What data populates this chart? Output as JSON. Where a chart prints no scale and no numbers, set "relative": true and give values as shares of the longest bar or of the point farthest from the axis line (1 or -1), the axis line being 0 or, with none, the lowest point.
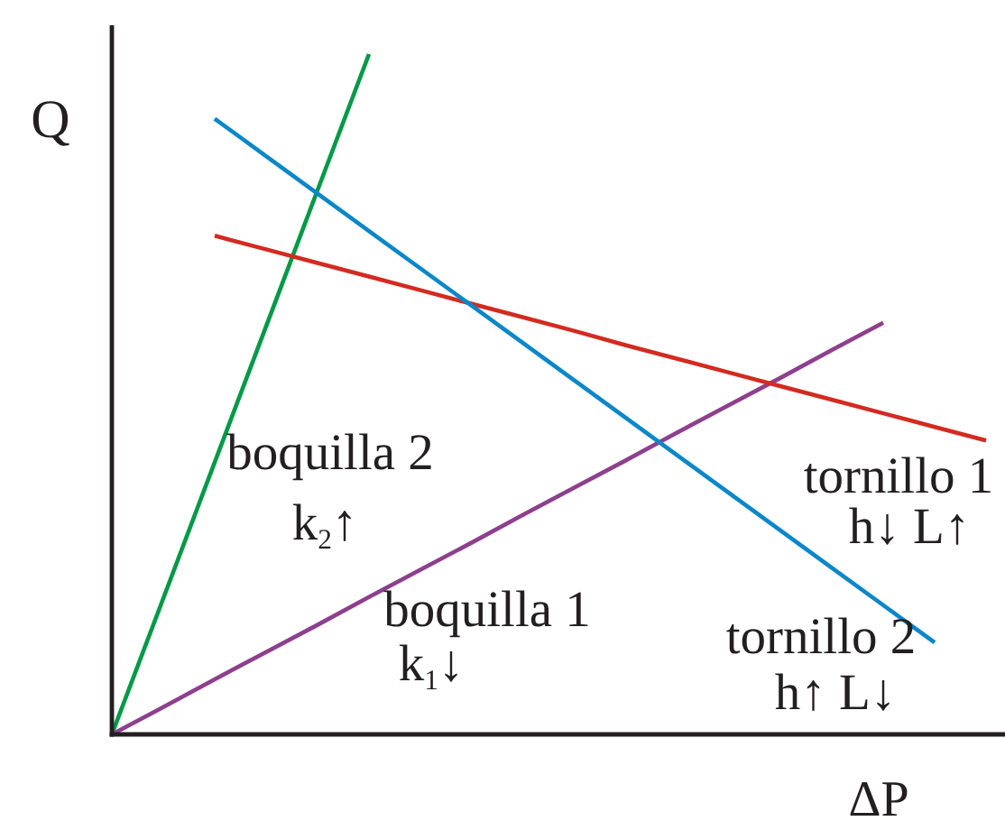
{
  "chart_data": {
    "type": "line",
    "relative": true,
    "xlabel": "ΔP",
    "ylabel": "Q",
    "line_style": "solid",
    "categories": [
      null,
      null,
      null,
      null,
      null,
      null,
      null,
      null,
      null,
      null,
      null,
      null,
      null,
      null,
      null,
      null,
      null,
      null
    ],
    "series": [
      {
        "name": "boquilla 2",
        "color": "#009a46",
        "values": [
          0,
          0.2,
          0.4,
          0.6,
          0.8,
          1,
          null,
          null,
          null,
          null,
          null,
          null,
          null,
          null,
          null,
          null,
          null,
          null
        ]
      },
      {
        "name": "boquilla 1",
        "color": "#8e3f8e",
        "values": [
          0,
          0.04,
          0.081,
          0.121,
          0.161,
          0.202,
          0.242,
          0.282,
          0.323,
          0.363,
          0.403,
          0.444,
          0.484,
          0.524,
          0.565,
          0.605,
          null,
          null
        ]
      },
      {
        "name": "tornillo 1",
        "color": "#d42a20",
        "values": [
          null,
          null,
          0.733,
          0.713,
          0.693,
          0.673,
          0.653,
          0.633,
          0.613,
          0.593,
          0.572,
          0.552,
          0.532,
          0.512,
          0.492,
          0.472,
          0.452,
          0.432
        ]
      },
      {
        "name": "tornillo 2",
        "color": "#0b87c9",
        "values": [
          null,
          null,
          0.905,
          0.85,
          0.795,
          0.74,
          0.685,
          0.63,
          0.575,
          0.52,
          0.465,
          0.41,
          0.355,
          0.3,
          0.245,
          0.19,
          0.135,
          null
        ]
      }
    ],
    "annotations": [
      "k$_{2}$↑",
      "k$_{1}$↓",
      "h↓ L↑",
      "h↑ L↓"
    ]
  }
}
